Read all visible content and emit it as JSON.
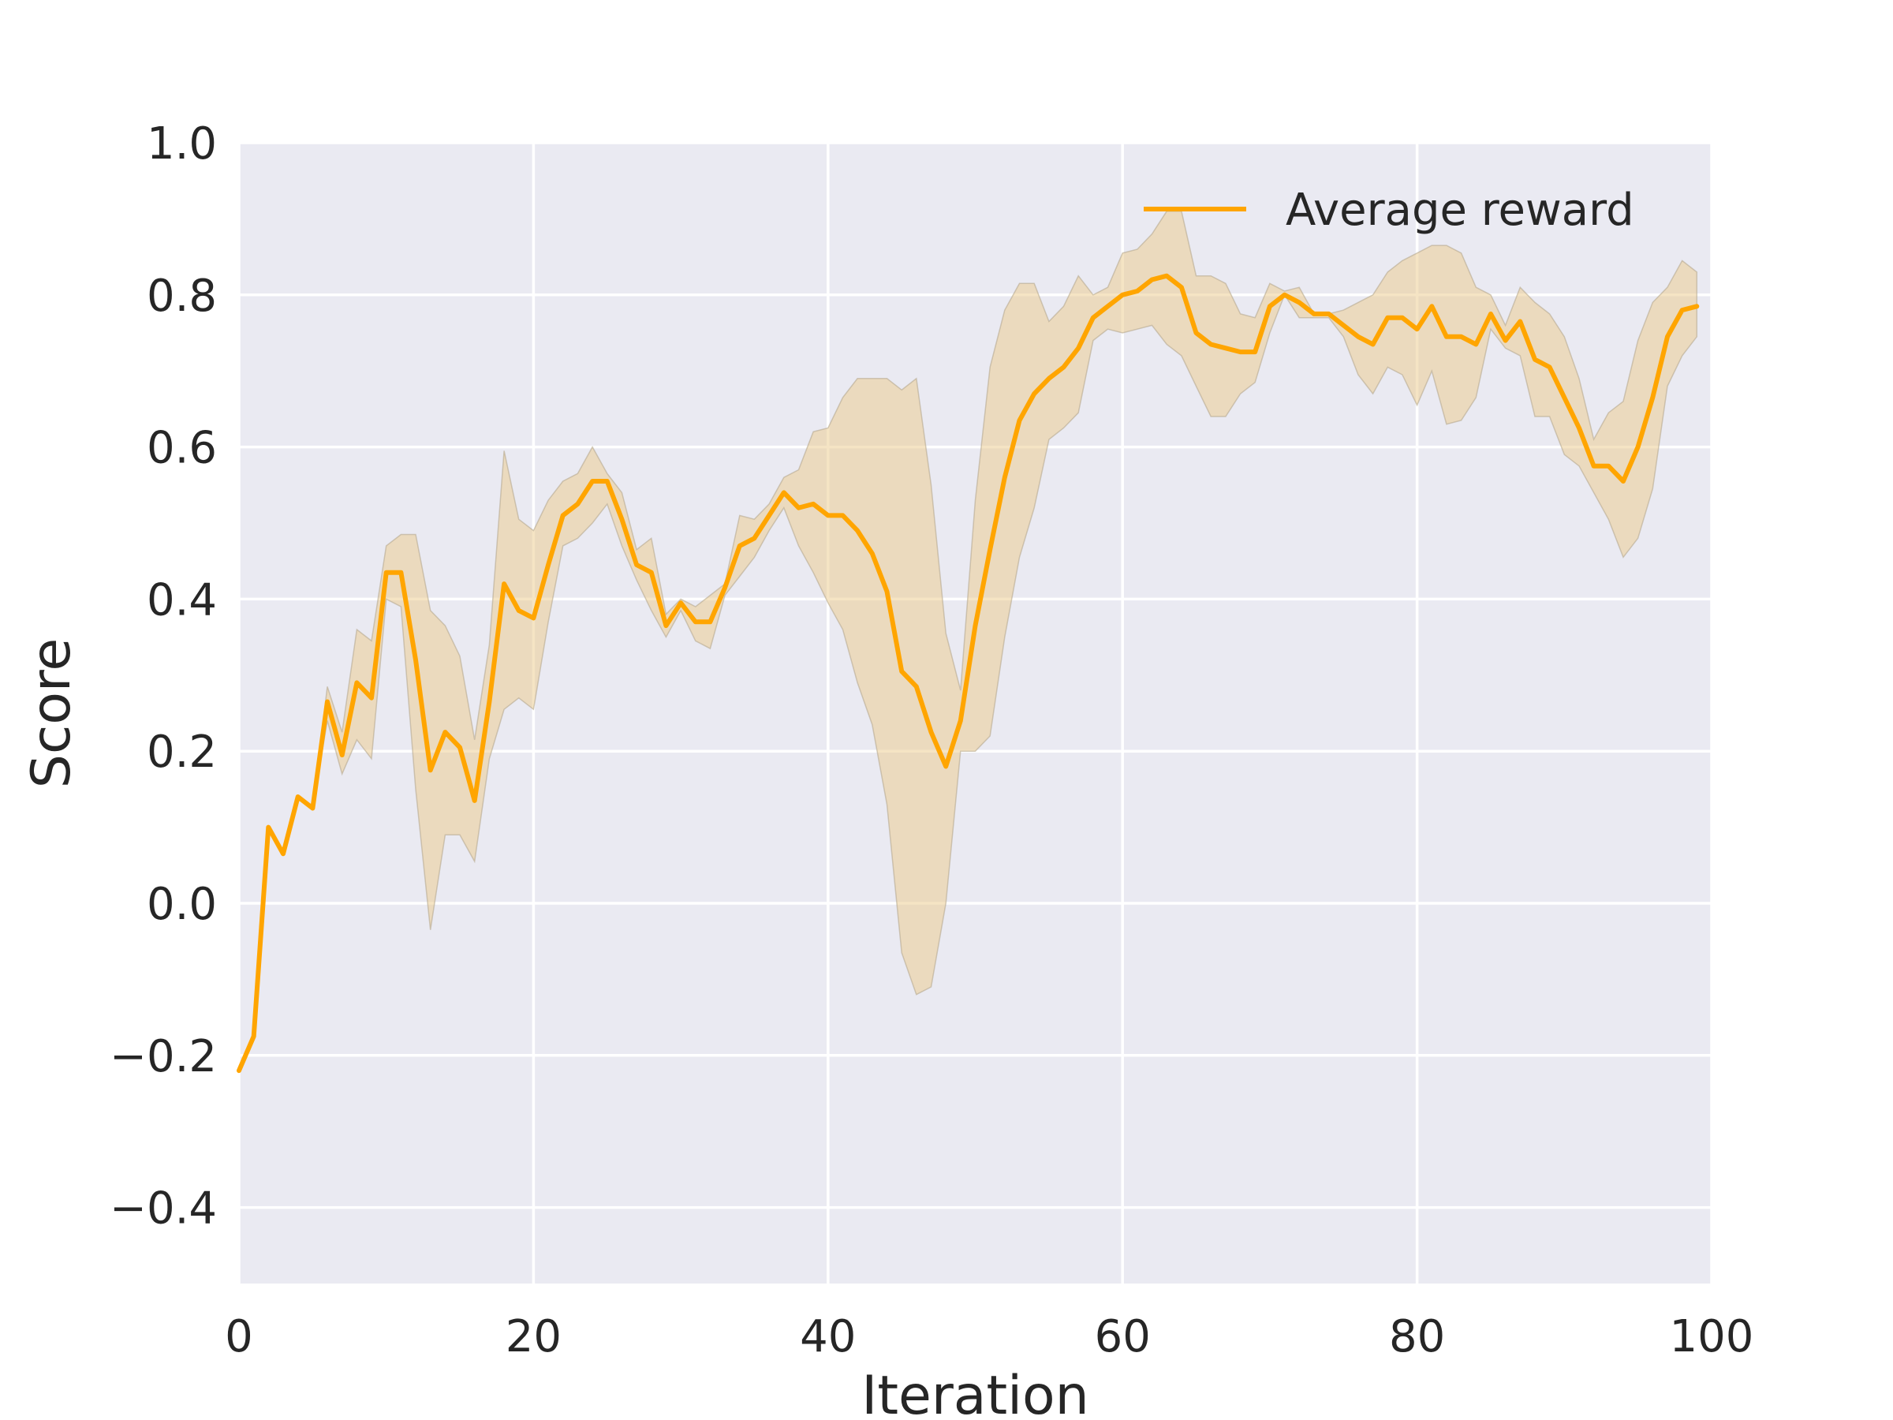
{
  "chart_data": {
    "type": "line",
    "title": "",
    "xlabel": "Iteration",
    "ylabel": "Score",
    "xlim": [
      0,
      100
    ],
    "ylim": [
      -0.5,
      1.0
    ],
    "xticks": [
      0,
      20,
      40,
      60,
      80,
      100
    ],
    "xtick_labels": [
      "0",
      "20",
      "40",
      "60",
      "80",
      "100"
    ],
    "yticks": [
      -0.4,
      -0.2,
      0.0,
      0.2,
      0.4,
      0.6,
      0.8,
      1.0
    ],
    "ytick_labels": [
      "−0.4",
      "−0.2",
      "0.0",
      "0.2",
      "0.4",
      "0.6",
      "0.8",
      "1.0"
    ],
    "grid": true,
    "legend_position": "top-right",
    "background_color": "#EAEAF2",
    "series": [
      {
        "name": "Average reward",
        "color": "#FFA500",
        "band_color": "#EBC98A",
        "x": [
          0,
          1,
          2,
          3,
          4,
          5,
          6,
          7,
          8,
          9,
          10,
          11,
          12,
          13,
          14,
          15,
          16,
          17,
          18,
          19,
          20,
          21,
          22,
          23,
          24,
          25,
          26,
          27,
          28,
          29,
          30,
          31,
          32,
          33,
          34,
          35,
          36,
          37,
          38,
          39,
          40,
          41,
          42,
          43,
          44,
          45,
          46,
          47,
          48,
          49,
          50,
          51,
          52,
          53,
          54,
          55,
          56,
          57,
          58,
          59,
          60,
          61,
          62,
          63,
          64,
          65,
          66,
          67,
          68,
          69,
          70,
          71,
          72,
          73,
          74,
          75,
          76,
          77,
          78,
          79,
          80,
          81,
          82,
          83,
          84,
          85,
          86,
          87,
          88,
          89,
          90,
          91,
          92,
          93,
          94,
          95,
          96,
          97,
          98,
          99
        ],
        "values": [
          -0.22,
          -0.175,
          0.1,
          0.065,
          0.14,
          0.125,
          0.265,
          0.195,
          0.29,
          0.27,
          0.435,
          0.435,
          0.32,
          0.175,
          0.225,
          0.205,
          0.135,
          0.265,
          0.42,
          0.385,
          0.375,
          0.445,
          0.51,
          0.525,
          0.555,
          0.555,
          0.505,
          0.445,
          0.435,
          0.365,
          0.395,
          0.37,
          0.37,
          0.415,
          0.47,
          0.48,
          0.51,
          0.54,
          0.52,
          0.525,
          0.51,
          0.51,
          0.49,
          0.46,
          0.41,
          0.305,
          0.285,
          0.225,
          0.18,
          0.24,
          0.365,
          0.465,
          0.56,
          0.635,
          0.67,
          0.69,
          0.705,
          0.73,
          0.77,
          0.785,
          0.8,
          0.805,
          0.82,
          0.825,
          0.81,
          0.75,
          0.735,
          0.73,
          0.725,
          0.725,
          0.785,
          0.8,
          0.79,
          0.775,
          0.775,
          0.76,
          0.745,
          0.735,
          0.77,
          0.77,
          0.755,
          0.785,
          0.745,
          0.745,
          0.735,
          0.775,
          0.74,
          0.765,
          0.715,
          0.705,
          0.665,
          0.625,
          0.575,
          0.575,
          0.555,
          0.6,
          0.665,
          0.745,
          0.78,
          0.785
        ],
        "lower": [
          -0.22,
          -0.175,
          0.1,
          0.065,
          0.14,
          0.125,
          0.24,
          0.17,
          0.215,
          0.19,
          0.4,
          0.39,
          0.15,
          -0.035,
          0.09,
          0.09,
          0.055,
          0.19,
          0.255,
          0.27,
          0.255,
          0.37,
          0.47,
          0.48,
          0.5,
          0.525,
          0.47,
          0.425,
          0.385,
          0.35,
          0.385,
          0.345,
          0.335,
          0.405,
          0.43,
          0.455,
          0.49,
          0.52,
          0.47,
          0.435,
          0.395,
          0.36,
          0.29,
          0.235,
          0.13,
          -0.065,
          -0.12,
          -0.11,
          0.0,
          0.2,
          0.2,
          0.22,
          0.35,
          0.455,
          0.52,
          0.61,
          0.625,
          0.645,
          0.74,
          0.755,
          0.75,
          0.755,
          0.76,
          0.735,
          0.72,
          0.68,
          0.64,
          0.64,
          0.67,
          0.685,
          0.75,
          0.8,
          0.77,
          0.77,
          0.77,
          0.745,
          0.695,
          0.67,
          0.705,
          0.695,
          0.655,
          0.7,
          0.63,
          0.635,
          0.665,
          0.755,
          0.73,
          0.72,
          0.64,
          0.64,
          0.59,
          0.575,
          0.54,
          0.505,
          0.455,
          0.48,
          0.545,
          0.68,
          0.72,
          0.745
        ],
        "upper": [
          -0.22,
          -0.175,
          0.1,
          0.065,
          0.14,
          0.125,
          0.285,
          0.225,
          0.36,
          0.345,
          0.47,
          0.485,
          0.485,
          0.385,
          0.365,
          0.325,
          0.215,
          0.34,
          0.595,
          0.505,
          0.49,
          0.53,
          0.555,
          0.565,
          0.6,
          0.565,
          0.54,
          0.465,
          0.48,
          0.38,
          0.4,
          0.39,
          0.405,
          0.42,
          0.51,
          0.505,
          0.525,
          0.56,
          0.57,
          0.62,
          0.625,
          0.665,
          0.69,
          0.69,
          0.69,
          0.675,
          0.69,
          0.55,
          0.355,
          0.28,
          0.53,
          0.705,
          0.78,
          0.815,
          0.815,
          0.765,
          0.785,
          0.825,
          0.8,
          0.81,
          0.855,
          0.86,
          0.88,
          0.91,
          0.91,
          0.825,
          0.825,
          0.815,
          0.775,
          0.77,
          0.815,
          0.805,
          0.81,
          0.775,
          0.775,
          0.78,
          0.79,
          0.8,
          0.83,
          0.845,
          0.855,
          0.865,
          0.865,
          0.855,
          0.81,
          0.8,
          0.76,
          0.81,
          0.79,
          0.775,
          0.745,
          0.69,
          0.61,
          0.645,
          0.66,
          0.74,
          0.79,
          0.81,
          0.845,
          0.83
        ]
      }
    ]
  }
}
